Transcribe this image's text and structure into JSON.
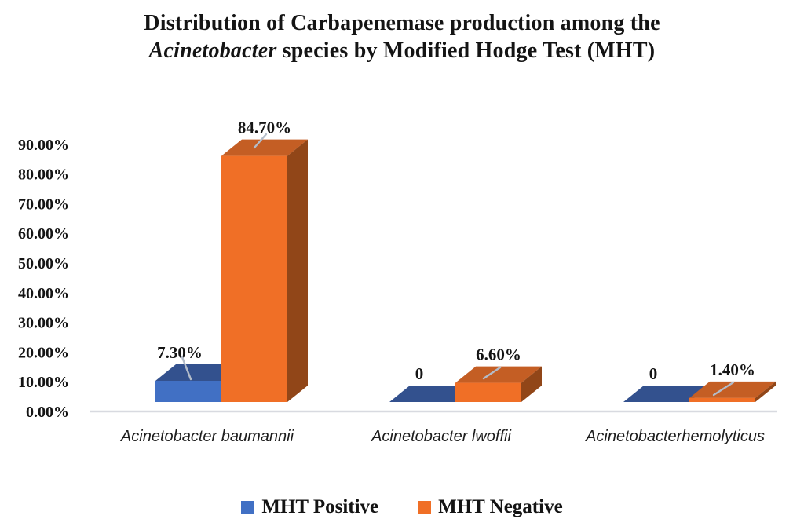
{
  "chart_data": {
    "type": "bar",
    "projection": "3d",
    "title_line1": "Distribution of Carbapenemase production among the",
    "title_line2_italic": "Acinetobacter",
    "title_line2_rest": " species by Modified Hodge Test (MHT)",
    "categories": [
      "Acinetobacter baumannii",
      "Acinetobacter lwoffii",
      "Acinetobacterhemolyticus"
    ],
    "series": [
      {
        "name": "MHT Positive",
        "color": "#4170C4",
        "top_color": "#33518E",
        "side_color": "#2C4679",
        "values": [
          7.3,
          0,
          0
        ],
        "labels": [
          "7.30%",
          "0",
          "0"
        ]
      },
      {
        "name": "MHT Negative",
        "color": "#F06F26",
        "top_color": "#C45E24",
        "side_color": "#914618",
        "values": [
          84.7,
          6.6,
          1.4
        ],
        "labels": [
          "84.70%",
          "6.60%",
          "1.40%"
        ]
      }
    ],
    "yticks": [
      "0.00%",
      "10.00%",
      "20.00%",
      "30.00%",
      "40.00%",
      "50.00%",
      "60.00%",
      "70.00%",
      "80.00%",
      "90.00%"
    ],
    "ylim": [
      0,
      90
    ],
    "xlabel": "",
    "ylabel": "",
    "grid": false,
    "legend_position": "bottom",
    "leader_line_color": "#b3bcc9",
    "axis_line_color": "#d8dae0",
    "text_color": "#141414"
  }
}
